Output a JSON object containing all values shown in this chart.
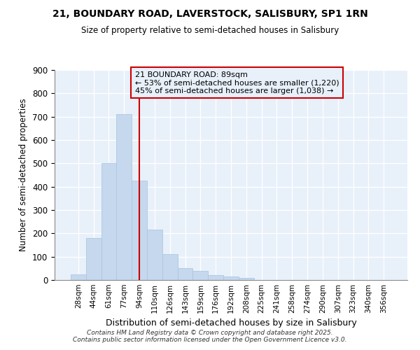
{
  "title_line1": "21, BOUNDARY ROAD, LAVERSTOCK, SALISBURY, SP1 1RN",
  "title_line2": "Size of property relative to semi-detached houses in Salisbury",
  "xlabel": "Distribution of semi-detached houses by size in Salisbury",
  "ylabel": "Number of semi-detached properties",
  "categories": [
    "28sqm",
    "44sqm",
    "61sqm",
    "77sqm",
    "94sqm",
    "110sqm",
    "126sqm",
    "143sqm",
    "159sqm",
    "176sqm",
    "192sqm",
    "208sqm",
    "225sqm",
    "241sqm",
    "258sqm",
    "274sqm",
    "290sqm",
    "307sqm",
    "323sqm",
    "340sqm",
    "356sqm"
  ],
  "values": [
    25,
    180,
    500,
    710,
    425,
    215,
    110,
    50,
    40,
    20,
    15,
    10,
    0,
    0,
    0,
    0,
    0,
    0,
    0,
    0,
    0
  ],
  "bar_color": "#c5d8ed",
  "bar_edgecolor": "#a8c4de",
  "highlight_bar_index": 4,
  "highlight_line_color": "#cc0000",
  "annotation_text": "21 BOUNDARY ROAD: 89sqm\n← 53% of semi-detached houses are smaller (1,220)\n45% of semi-detached houses are larger (1,038) →",
  "annotation_box_edgecolor": "#cc0000",
  "background_color": "#ffffff",
  "plot_bg_color": "#e8f0fa",
  "grid_color": "#ffffff",
  "footer_line1": "Contains HM Land Registry data © Crown copyright and database right 2025.",
  "footer_line2": "Contains public sector information licensed under the Open Government Licence v3.0.",
  "ylim": [
    0,
    900
  ],
  "yticks": [
    0,
    100,
    200,
    300,
    400,
    500,
    600,
    700,
    800,
    900
  ]
}
